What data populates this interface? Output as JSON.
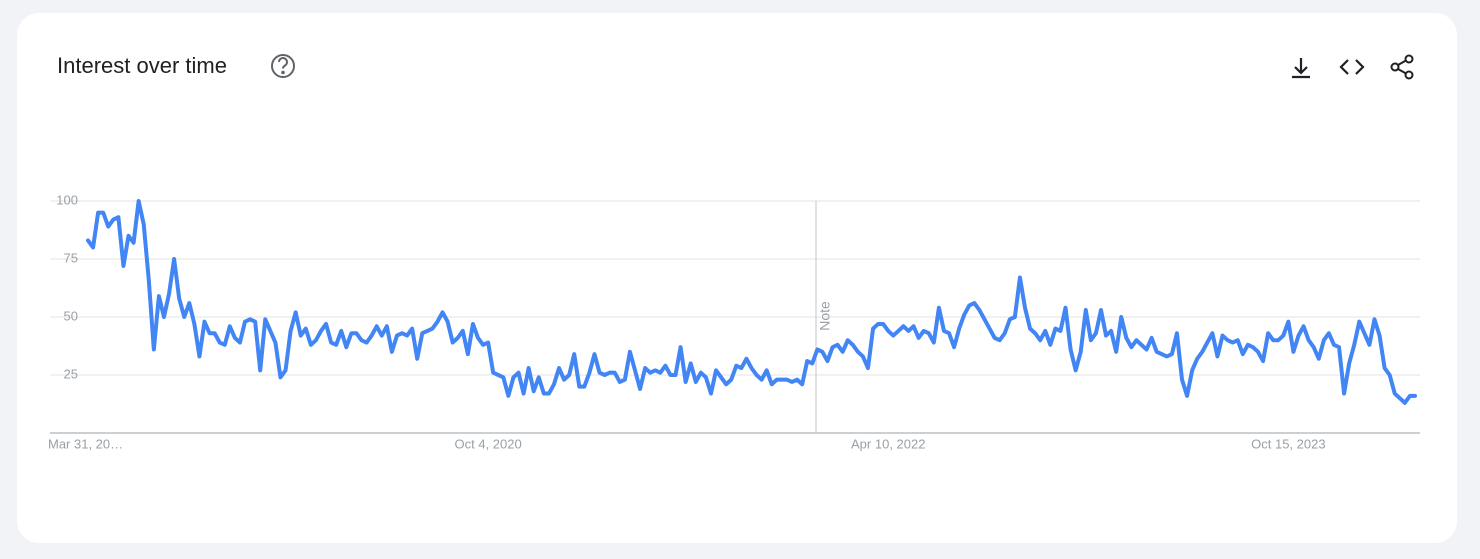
{
  "chart_data": {
    "type": "line",
    "title": "Interest over time",
    "categories": [
      "Mar 31, 20…",
      null,
      null,
      null,
      null,
      null,
      null,
      null,
      null,
      null,
      null,
      null,
      null,
      null,
      null,
      null,
      null,
      null,
      null,
      null,
      null,
      null,
      null,
      null,
      null,
      null,
      null,
      null,
      null,
      null,
      null,
      null,
      null,
      null,
      null,
      null,
      null,
      null,
      null,
      null,
      null,
      null,
      null,
      null,
      null,
      null,
      null,
      null,
      null,
      null,
      null,
      null,
      null,
      null,
      null,
      null,
      null,
      null,
      null,
      null,
      null,
      null,
      null,
      null,
      null,
      null,
      null,
      null,
      null,
      null,
      null,
      null,
      null,
      null,
      null,
      null,
      null,
      null,
      null,
      "Oct 4, 2020",
      null,
      null,
      null,
      null,
      null,
      null,
      null,
      null,
      null,
      null,
      null,
      null,
      null,
      null,
      null,
      null,
      null,
      null,
      null,
      null,
      null,
      null,
      null,
      null,
      null,
      null,
      null,
      null,
      null,
      null,
      null,
      null,
      null,
      null,
      null,
      null,
      null,
      null,
      null,
      null,
      null,
      null,
      null,
      null,
      null,
      null,
      null,
      null,
      null,
      null,
      null,
      null,
      null,
      null,
      null,
      null,
      null,
      null,
      null,
      null,
      null,
      null,
      null,
      null,
      null,
      null,
      null,
      null,
      null,
      null,
      null,
      null,
      null,
      null,
      null,
      null,
      null,
      null,
      "Apr 10, 2022",
      null,
      null,
      null,
      null,
      null,
      null,
      null,
      null,
      null,
      null,
      null,
      null,
      null,
      null,
      null,
      null,
      null,
      null,
      null,
      null,
      null,
      null,
      null,
      null,
      null,
      null,
      null,
      null,
      null,
      null,
      null,
      null,
      null,
      null,
      null,
      null,
      null,
      null,
      null,
      null,
      null,
      null,
      null,
      null,
      null,
      null,
      null,
      null,
      null,
      null,
      null,
      null,
      null,
      null,
      null,
      null,
      null,
      null,
      null,
      null,
      null,
      null,
      null,
      null,
      null,
      null,
      null,
      null,
      null,
      null,
      null,
      null,
      null,
      null,
      null,
      null,
      null,
      null,
      "Oct 15, 2023",
      null,
      null,
      null,
      null,
      null,
      null,
      null,
      null,
      null,
      null,
      null,
      null,
      null,
      null,
      null,
      null,
      null,
      null,
      null,
      null,
      null,
      null,
      null,
      null,
      null
    ],
    "values": [
      83,
      80,
      95,
      95,
      89,
      92,
      93,
      72,
      85,
      82,
      100,
      90,
      66,
      36,
      59,
      50,
      60,
      75,
      58,
      50,
      56,
      47,
      33,
      48,
      43,
      43,
      39,
      38,
      46,
      41,
      39,
      48,
      49,
      48,
      27,
      49,
      44,
      39,
      24,
      27,
      44,
      52,
      42,
      45,
      38,
      40,
      44,
      47,
      39,
      38,
      44,
      37,
      43,
      43,
      40,
      39,
      42,
      46,
      42,
      46,
      35,
      42,
      43,
      42,
      45,
      32,
      43,
      44,
      45,
      48,
      52,
      48,
      39,
      41,
      44,
      34,
      47,
      41,
      38,
      39,
      26,
      25,
      24,
      16,
      24,
      26,
      17,
      28,
      18,
      24,
      17,
      17,
      21,
      28,
      23,
      25,
      34,
      20,
      20,
      26,
      34,
      26,
      25,
      26,
      26,
      22,
      23,
      35,
      27,
      19,
      28,
      26,
      27,
      26,
      29,
      25,
      25,
      37,
      22,
      30,
      22,
      26,
      24,
      17,
      27,
      24,
      21,
      23,
      29,
      28,
      32,
      28,
      25,
      23,
      27,
      21,
      23,
      23,
      23,
      22,
      23,
      21,
      31,
      30,
      36,
      35,
      31,
      37,
      38,
      35,
      40,
      38,
      35,
      33,
      28,
      45,
      47,
      47,
      44,
      42,
      44,
      46,
      44,
      46,
      41,
      44,
      43,
      39,
      54,
      44,
      43,
      37,
      45,
      51,
      55,
      56,
      53,
      49,
      45,
      41,
      40,
      43,
      49,
      50,
      67,
      54,
      45,
      43,
      40,
      44,
      38,
      45,
      44,
      54,
      36,
      27,
      35,
      53,
      40,
      43,
      53,
      42,
      44,
      35,
      50,
      41,
      37,
      40,
      38,
      36,
      41,
      35,
      34,
      33,
      34,
      43,
      23,
      16,
      27,
      32,
      35,
      39,
      43,
      33,
      42,
      40,
      39,
      40,
      34,
      38,
      37,
      35,
      31,
      43,
      40,
      40,
      42,
      48,
      35,
      42,
      46,
      40,
      37,
      32,
      40,
      43,
      38,
      37,
      17,
      30,
      38,
      48,
      43,
      38,
      49,
      42,
      28,
      25,
      17,
      15,
      13,
      16,
      16
    ],
    "color": "#4285f4",
    "ylim": [
      0,
      100
    ],
    "yticks": [
      25,
      50,
      75,
      100
    ],
    "grid": true,
    "annotations": [
      {
        "text": "Note"
      }
    ]
  }
}
